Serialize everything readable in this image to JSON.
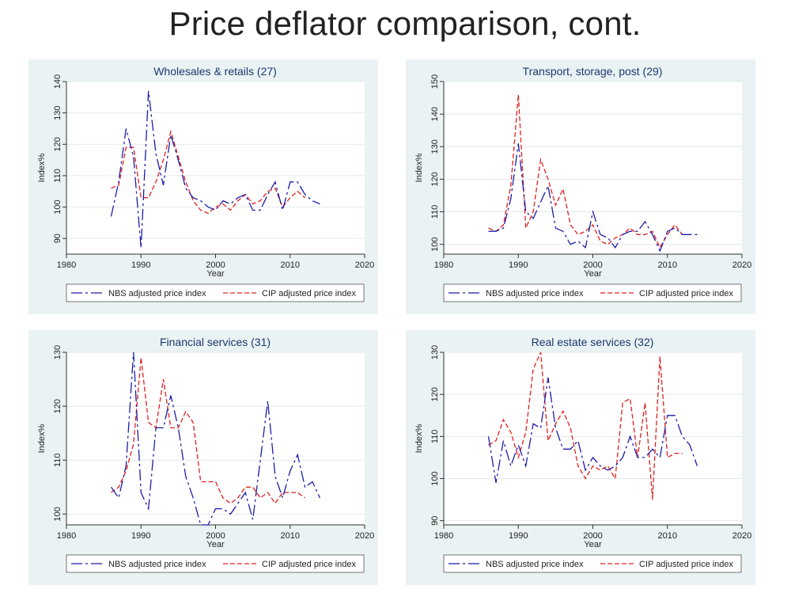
{
  "slide": {
    "title": "Price deflator comparison, cont."
  },
  "colors": {
    "panel_bg": "#eaf2f3",
    "nbs": "#1c1ca8",
    "cip": "#e02020"
  },
  "chart_data": [
    {
      "type": "line",
      "title": "Wholesales & retails (27)",
      "xlabel": "Year",
      "ylabel": "Index%",
      "xlim": [
        1980,
        2020
      ],
      "ylim": [
        85,
        140
      ],
      "xticks": [
        1980,
        1990,
        2000,
        2010,
        2020
      ],
      "yticks": [
        90,
        100,
        110,
        120,
        130,
        140
      ],
      "series": [
        {
          "name": "NBS adjusted price index",
          "x": [
            1986,
            1987,
            1988,
            1989,
            1990,
            1991,
            1992,
            1993,
            1994,
            1995,
            1996,
            1997,
            1998,
            1999,
            2000,
            2001,
            2002,
            2003,
            2004,
            2005,
            2006,
            2007,
            2008,
            2009,
            2010,
            2011,
            2012,
            2013,
            2014
          ],
          "values": [
            97,
            108,
            125,
            116,
            87,
            137,
            117,
            107,
            123,
            115,
            106,
            103,
            102,
            100,
            99,
            102,
            101,
            103,
            104,
            99,
            99,
            104,
            108,
            99,
            108,
            108,
            104,
            102,
            101
          ]
        },
        {
          "name": "CIP adjusted price index",
          "x": [
            1986,
            1987,
            1988,
            1989,
            1990,
            1991,
            1992,
            1993,
            1994,
            1995,
            1996,
            1997,
            1998,
            1999,
            2000,
            2001,
            2002,
            2003,
            2004,
            2005,
            2006,
            2007,
            2008,
            2009,
            2010,
            2011,
            2012
          ],
          "values": [
            106,
            107,
            119,
            119,
            103,
            103,
            108,
            115,
            124,
            116,
            108,
            102,
            99,
            98,
            100,
            101,
            99,
            102,
            104,
            101,
            102,
            105,
            106,
            100,
            103,
            105,
            103
          ]
        }
      ]
    },
    {
      "type": "line",
      "title": "Transport, storage, post (29)",
      "xlabel": "Year",
      "ylabel": "Index%",
      "xlim": [
        1980,
        2020
      ],
      "ylim": [
        97,
        150
      ],
      "xticks": [
        1980,
        1990,
        2000,
        2010,
        2020
      ],
      "yticks": [
        100,
        110,
        120,
        130,
        140,
        150
      ],
      "series": [
        {
          "name": "NBS adjusted price index",
          "x": [
            1986,
            1987,
            1988,
            1989,
            1990,
            1991,
            1992,
            1993,
            1994,
            1995,
            1996,
            1997,
            1998,
            1999,
            2000,
            2001,
            2002,
            2003,
            2004,
            2005,
            2006,
            2007,
            2008,
            2009,
            2010,
            2011,
            2012,
            2013,
            2014
          ],
          "values": [
            104,
            104,
            105,
            114,
            131,
            110,
            108,
            113,
            118,
            105,
            104,
            100,
            101,
            99,
            110,
            103,
            102,
            99,
            103,
            104,
            104,
            107,
            103,
            98,
            104,
            105,
            103,
            103,
            103
          ]
        },
        {
          "name": "CIP adjusted price index",
          "x": [
            1986,
            1987,
            1988,
            1989,
            1990,
            1991,
            1992,
            1993,
            1994,
            1995,
            1996,
            1997,
            1998,
            1999,
            2000,
            2001,
            2002,
            2003,
            2004,
            2005,
            2006,
            2007,
            2008,
            2009,
            2010,
            2011,
            2012
          ],
          "values": [
            105,
            104,
            106,
            118,
            146,
            105,
            110,
            126,
            120,
            112,
            117,
            106,
            103,
            104,
            106,
            101,
            100,
            102,
            103,
            105,
            103,
            103,
            104,
            99,
            103,
            106,
            103
          ]
        }
      ]
    },
    {
      "type": "line",
      "title": "Financial services (31)",
      "xlabel": "Year",
      "ylabel": "Index%",
      "xlim": [
        1980,
        2020
      ],
      "ylim": [
        98,
        130
      ],
      "xticks": [
        1980,
        1990,
        2000,
        2010,
        2020
      ],
      "yticks": [
        100,
        110,
        120,
        130
      ],
      "series": [
        {
          "name": "NBS adjusted price index",
          "x": [
            1986,
            1987,
            1988,
            1989,
            1990,
            1991,
            1992,
            1993,
            1994,
            1995,
            1996,
            1997,
            1998,
            1999,
            2000,
            2001,
            2002,
            2003,
            2004,
            2005,
            2006,
            2007,
            2008,
            2009,
            2010,
            2011,
            2012,
            2013,
            2014
          ],
          "values": [
            105,
            103,
            109,
            130,
            104,
            101,
            116,
            116,
            122,
            116,
            107,
            103,
            98,
            98,
            101,
            101,
            100,
            102,
            104,
            99,
            110,
            121,
            107,
            103,
            108,
            111,
            105,
            106,
            103
          ]
        },
        {
          "name": "CIP adjusted price index",
          "x": [
            1986,
            1987,
            1988,
            1989,
            1990,
            1991,
            1992,
            1993,
            1994,
            1995,
            1996,
            1997,
            1998,
            1999,
            2000,
            2001,
            2002,
            2003,
            2004,
            2005,
            2006,
            2007,
            2008,
            2009,
            2010,
            2011,
            2012
          ],
          "values": [
            104,
            105,
            108,
            113,
            129,
            117,
            116,
            125,
            116,
            116,
            119,
            117,
            106,
            106,
            106,
            103,
            102,
            103,
            105,
            105,
            103,
            104,
            102,
            104,
            104,
            104,
            103
          ]
        }
      ]
    },
    {
      "type": "line",
      "title": "Real estate services (32)",
      "xlabel": "Year",
      "ylabel": "Index%",
      "xlim": [
        1980,
        2020
      ],
      "ylim": [
        89,
        130
      ],
      "xticks": [
        1980,
        1990,
        2000,
        2010,
        2020
      ],
      "yticks": [
        90,
        100,
        110,
        120,
        130
      ],
      "series": [
        {
          "name": "NBS adjusted price index",
          "x": [
            1986,
            1987,
            1988,
            1989,
            1990,
            1991,
            1992,
            1993,
            1994,
            1995,
            1996,
            1997,
            1998,
            1999,
            2000,
            2001,
            2002,
            2003,
            2004,
            2005,
            2006,
            2007,
            2008,
            2009,
            2010,
            2011,
            2012,
            2013,
            2014
          ],
          "values": [
            110,
            99,
            109,
            103,
            108,
            103,
            113,
            112,
            124,
            112,
            107,
            107,
            109,
            102,
            105,
            103,
            102,
            103,
            105,
            110,
            105,
            105,
            107,
            105,
            115,
            115,
            110,
            108,
            103
          ]
        },
        {
          "name": "CIP adjusted price index",
          "x": [
            1986,
            1987,
            1988,
            1989,
            1990,
            1991,
            1992,
            1993,
            1994,
            1995,
            1996,
            1997,
            1998,
            1999,
            2000,
            2001,
            2002,
            2003,
            2004,
            2005,
            2006,
            2007,
            2008,
            2009,
            2010,
            2011,
            2012
          ],
          "values": [
            108,
            109,
            114,
            111,
            105,
            111,
            126,
            130,
            109,
            113,
            116,
            112,
            103,
            100,
            103,
            102,
            103,
            100,
            118,
            119,
            105,
            118,
            95,
            129,
            105,
            106,
            106
          ]
        }
      ]
    }
  ]
}
